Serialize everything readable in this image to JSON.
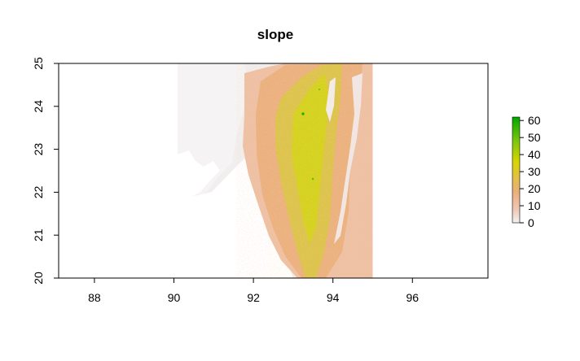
{
  "chart_data": {
    "type": "heatmap",
    "title": "slope",
    "xlabel": "",
    "ylabel": "",
    "xlim": [
      87.1,
      97.9
    ],
    "ylim": [
      20,
      25
    ],
    "x_ticks": [
      88,
      90,
      92,
      94,
      96
    ],
    "y_ticks": [
      20,
      21,
      22,
      23,
      24,
      25
    ],
    "raster_extent": {
      "xmin": 90,
      "xmax": 95,
      "ymin": 20,
      "ymax": 25
    },
    "legend": {
      "placement": "right",
      "min": 0,
      "max": 62,
      "ticks": [
        0,
        10,
        20,
        30,
        40,
        50,
        60
      ],
      "colors": [
        {
          "value": 0,
          "color": "#f2f2f2"
        },
        {
          "value": 8,
          "color": "#eec7b4"
        },
        {
          "value": 18,
          "color": "#ebaf7c"
        },
        {
          "value": 28,
          "color": "#e2c43a"
        },
        {
          "value": 36,
          "color": "#d6d600"
        },
        {
          "value": 48,
          "color": "#7bc70c"
        },
        {
          "value": 62,
          "color": "#00a600"
        }
      ]
    },
    "approx_values": {
      "lowland_plain": 0,
      "coastal_hills": 8,
      "foothill_ridges": 20,
      "main_ridge_core": 35,
      "peak_cells": 55
    }
  }
}
